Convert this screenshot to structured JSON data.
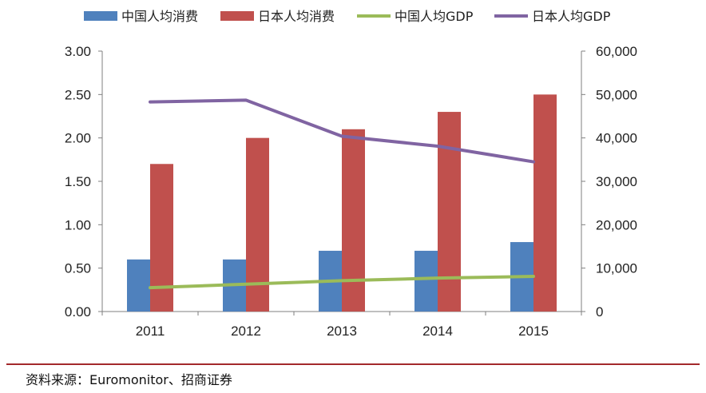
{
  "chart_data": {
    "type": "bar",
    "categories": [
      "2011",
      "2012",
      "2013",
      "2014",
      "2015"
    ],
    "series": [
      {
        "name": "中国人均消费",
        "kind": "bar",
        "axis": "left",
        "color": "#4f81bd",
        "values": [
          0.6,
          0.6,
          0.7,
          0.7,
          0.8
        ]
      },
      {
        "name": "日本人均消费",
        "kind": "bar",
        "axis": "left",
        "color": "#c0504d",
        "values": [
          1.7,
          2.0,
          2.1,
          2.3,
          2.5
        ]
      },
      {
        "name": "中国人均GDP",
        "kind": "line",
        "axis": "right",
        "color": "#9bbb59",
        "values": [
          5500,
          6300,
          7100,
          7700,
          8100
        ]
      },
      {
        "name": "日本人均GDP",
        "kind": "line",
        "axis": "right",
        "color": "#8064a2",
        "values": [
          48300,
          48700,
          40400,
          38100,
          34500
        ]
      }
    ],
    "y_left": {
      "min": 0,
      "max": 3,
      "step": 0.5,
      "tick_labels": [
        "0.00",
        "0.50",
        "1.00",
        "1.50",
        "2.00",
        "2.50",
        "3.00"
      ]
    },
    "y_right": {
      "min": 0,
      "max": 60000,
      "step": 10000,
      "tick_labels": [
        "0",
        "10,000",
        "20,000",
        "30,000",
        "40,000",
        "50,000",
        "60,000"
      ]
    },
    "grid": false,
    "legend_position": "top"
  },
  "source": "资料来源：Euromonitor、招商证券"
}
